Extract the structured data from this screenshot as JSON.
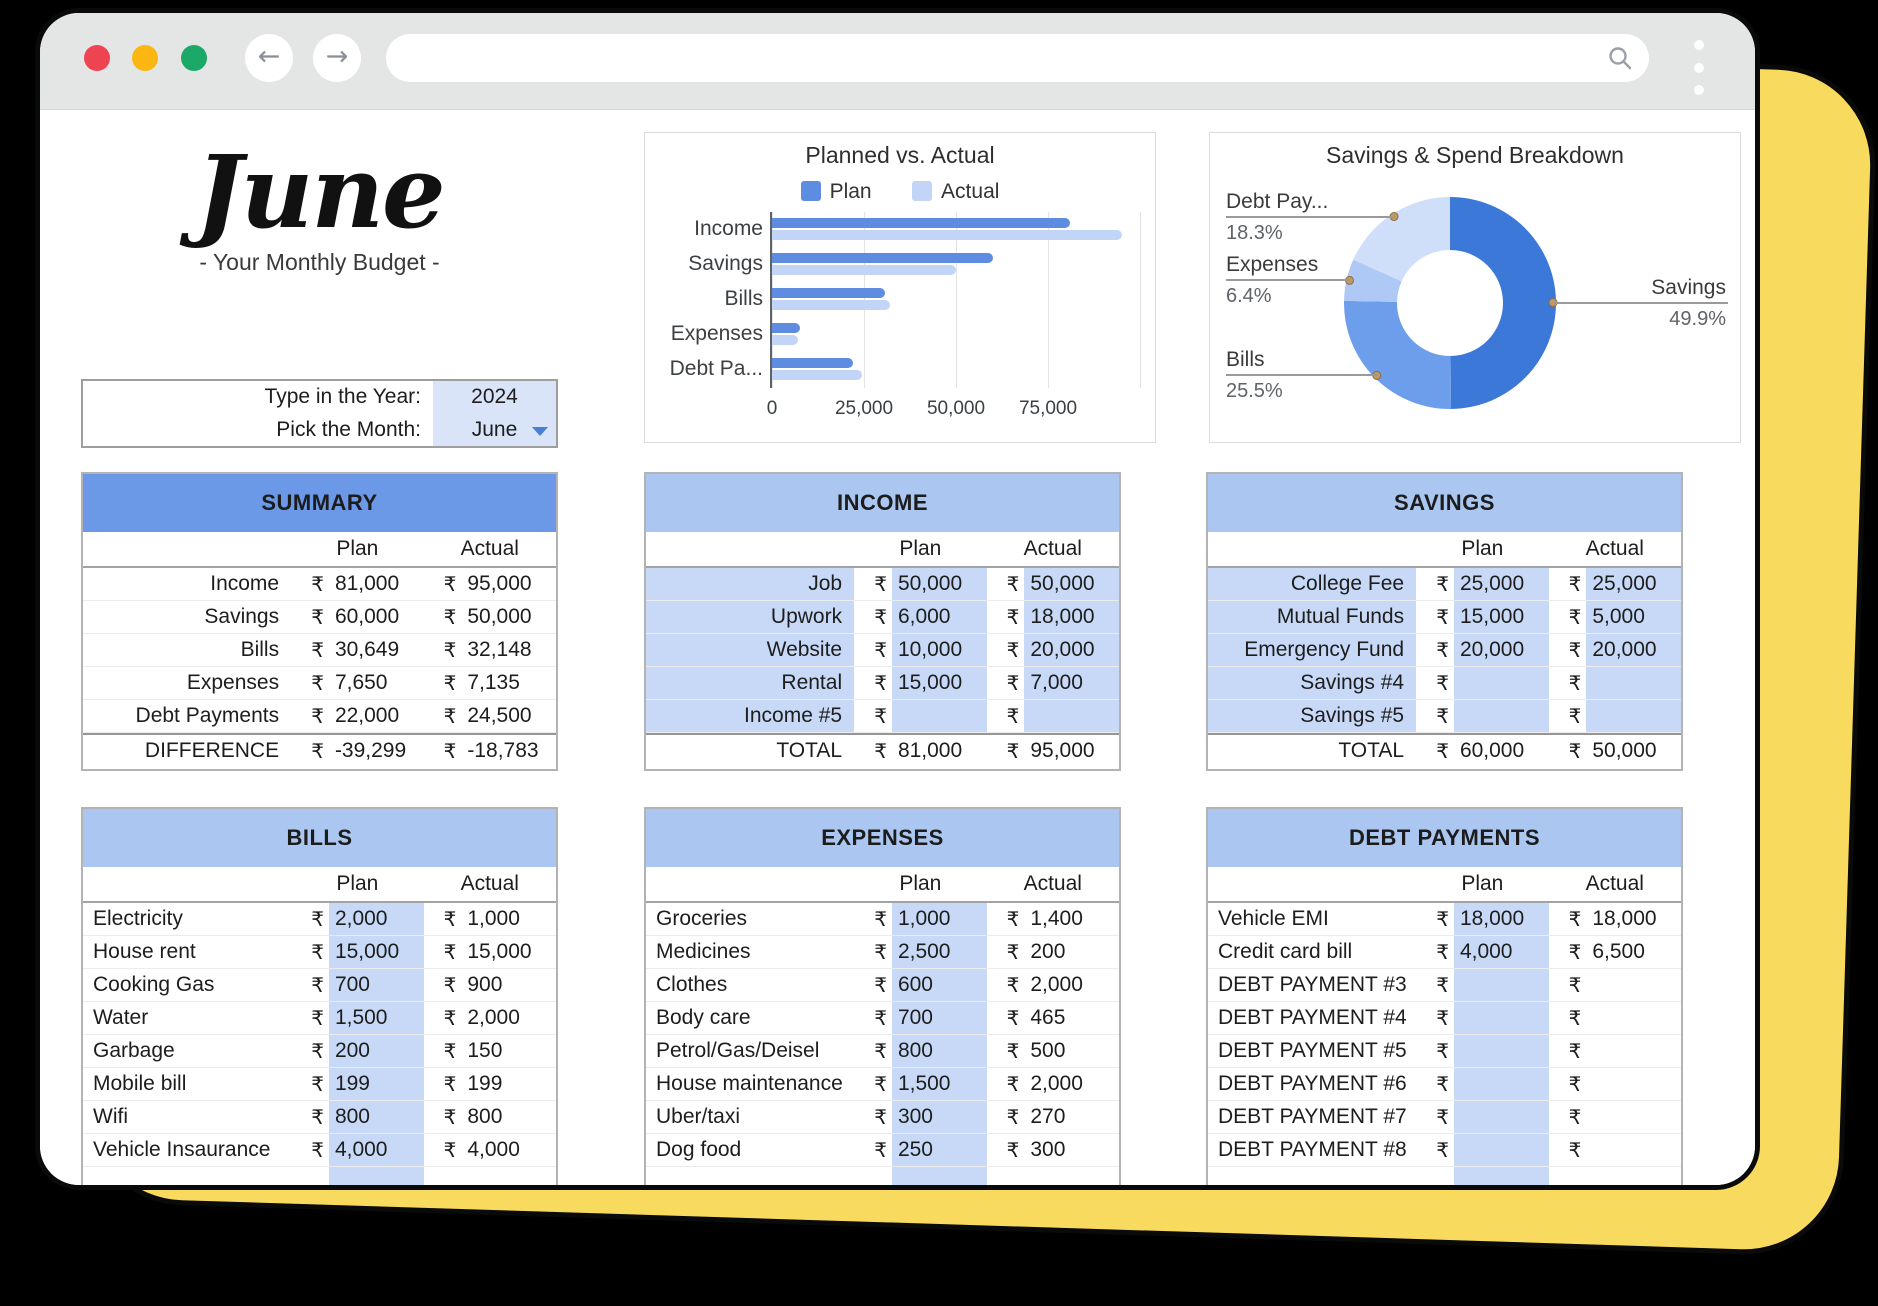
{
  "browser": {
    "address_bar": {
      "value": "",
      "placeholder": ""
    },
    "traffic_lights": [
      "#ee4452",
      "#fbb612",
      "#1ca866"
    ]
  },
  "header": {
    "month_title": "June",
    "subtitle": "- Your Monthly Budget -",
    "year_label": "Type in the Year:",
    "year_value": "2024",
    "month_label": "Pick the Month:",
    "month_value": "June"
  },
  "currency": "₹",
  "colors": {
    "table_header_primary": "#6b99e8",
    "table_header_secondary": "#abc7f1",
    "cell_band": "#c7d9f7",
    "picker_value_bg": "#d9e4f8",
    "plan_bar": "#5e8ce0",
    "actual_bar": "#c3d5f6",
    "backdrop_yellow": "#f8db5e"
  },
  "chart_data": [
    {
      "type": "bar",
      "orientation": "horizontal",
      "title": "Planned vs. Actual",
      "categories": [
        "Income",
        "Savings",
        "Bills",
        "Expenses",
        "Debt Pa..."
      ],
      "series": [
        {
          "name": "Plan",
          "color": "#5e8ce0",
          "values": [
            81000,
            60000,
            30649,
            7650,
            22000
          ]
        },
        {
          "name": "Actual",
          "color": "#c3d5f6",
          "values": [
            95000,
            50000,
            32148,
            7135,
            24500
          ]
        }
      ],
      "xlim": [
        0,
        100000
      ],
      "xticks": [
        {
          "value": 0,
          "label": "0"
        },
        {
          "value": 25000,
          "label": "25,000"
        },
        {
          "value": 50000,
          "label": "50,000"
        },
        {
          "value": 75000,
          "label": "75,000"
        },
        {
          "value": 100000,
          "label": ""
        }
      ],
      "legend_position": "top",
      "grid": true
    },
    {
      "type": "pie",
      "donut": true,
      "title": "Savings & Spend Breakdown",
      "slices": [
        {
          "label": "Savings",
          "pct": "49.9%",
          "value": 49.9,
          "color": "#3c78d8",
          "side": "right"
        },
        {
          "label": "Bills",
          "pct": "25.5%",
          "value": 25.5,
          "color": "#6d9eeb",
          "side": "left"
        },
        {
          "label": "Expenses",
          "pct": "6.4%",
          "value": 6.4,
          "color": "#aec9f5",
          "side": "left"
        },
        {
          "label": "Debt Pay...",
          "pct": "18.3%",
          "value": 18.3,
          "color": "#cfdff9",
          "side": "left"
        }
      ],
      "legend_position": "none"
    }
  ],
  "tables": {
    "summary": {
      "title": "SUMMARY",
      "columns": [
        "Plan",
        "Actual"
      ],
      "style": "summary",
      "rows": [
        [
          "Income",
          "81,000",
          "95,000"
        ],
        [
          "Savings",
          "60,000",
          "50,000"
        ],
        [
          "Bills",
          "30,649",
          "32,148"
        ],
        [
          "Expenses",
          "7,650",
          "7,135"
        ],
        [
          "Debt Payments",
          "22,000",
          "24,500"
        ]
      ],
      "total": [
        "DIFFERENCE",
        "-39,299",
        "-18,783"
      ]
    },
    "income": {
      "title": "INCOME",
      "columns": [
        "Plan",
        "Actual"
      ],
      "style": "banded",
      "rows": [
        [
          "Job",
          "50,000",
          "50,000"
        ],
        [
          "Upwork",
          "6,000",
          "18,000"
        ],
        [
          "Website",
          "10,000",
          "20,000"
        ],
        [
          "Rental",
          "15,000",
          "7,000"
        ],
        [
          "Income #5",
          "",
          ""
        ]
      ],
      "total": [
        "TOTAL",
        "81,000",
        "95,000"
      ]
    },
    "savings": {
      "title": "SAVINGS",
      "columns": [
        "Plan",
        "Actual"
      ],
      "style": "banded",
      "rows": [
        [
          "College Fee",
          "25,000",
          "25,000"
        ],
        [
          "Mutual Funds",
          "15,000",
          "5,000"
        ],
        [
          "Emergency Fund",
          "20,000",
          "20,000"
        ],
        [
          "Savings #4",
          "",
          ""
        ],
        [
          "Savings #5",
          "",
          ""
        ]
      ],
      "total": [
        "TOTAL",
        "60,000",
        "50,000"
      ]
    },
    "bills": {
      "title": "BILLS",
      "columns": [
        "Plan",
        "Actual"
      ],
      "style": "planband",
      "clipped": true,
      "rows": [
        [
          "Electricity",
          "2,000",
          "1,000"
        ],
        [
          "House rent",
          "15,000",
          "15,000"
        ],
        [
          "Cooking Gas",
          "700",
          "900"
        ],
        [
          "Water",
          "1,500",
          "2,000"
        ],
        [
          "Garbage",
          "200",
          "150"
        ],
        [
          "Mobile bill",
          "199",
          "199"
        ],
        [
          "Wifi",
          "800",
          "800"
        ],
        [
          "Vehicle Insaurance",
          "4,000",
          "4,000"
        ]
      ]
    },
    "expenses": {
      "title": "EXPENSES",
      "columns": [
        "Plan",
        "Actual"
      ],
      "style": "planband",
      "clipped": true,
      "rows": [
        [
          "Groceries",
          "1,000",
          "1,400"
        ],
        [
          "Medicines",
          "2,500",
          "200"
        ],
        [
          "Clothes",
          "600",
          "2,000"
        ],
        [
          "Body care",
          "700",
          "465"
        ],
        [
          "Petrol/Gas/Deisel",
          "800",
          "500"
        ],
        [
          "House maintenance",
          "1,500",
          "2,000"
        ],
        [
          "Uber/taxi",
          "300",
          "270"
        ],
        [
          "Dog food",
          "250",
          "300"
        ]
      ]
    },
    "debt": {
      "title": "DEBT PAYMENTS",
      "columns": [
        "Plan",
        "Actual"
      ],
      "style": "planband",
      "clipped": true,
      "rows": [
        [
          "Vehicle EMI",
          "18,000",
          "18,000"
        ],
        [
          "Credit card bill",
          "4,000",
          "6,500"
        ],
        [
          "DEBT PAYMENT #3",
          "",
          ""
        ],
        [
          "DEBT PAYMENT #4",
          "",
          ""
        ],
        [
          "DEBT PAYMENT #5",
          "",
          ""
        ],
        [
          "DEBT PAYMENT #6",
          "",
          ""
        ],
        [
          "DEBT PAYMENT #7",
          "",
          ""
        ],
        [
          "DEBT PAYMENT #8",
          "",
          ""
        ]
      ]
    }
  }
}
